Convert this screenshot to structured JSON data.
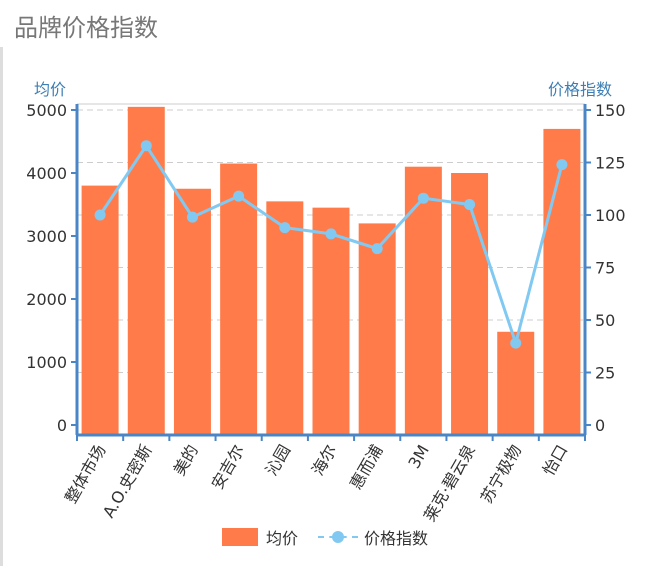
{
  "page": {
    "title": "品牌价格指数"
  },
  "chart_data": {
    "type": "bar+line",
    "categories": [
      "整体市场",
      "A.O.史密斯",
      "美的",
      "安吉尔",
      "沁园",
      "海尔",
      "惠而浦",
      "3M",
      "莱克·碧云泉",
      "苏宁极物",
      "怡口"
    ],
    "series": [
      {
        "name": "均价",
        "type": "bar",
        "axis": "left",
        "color": "#ff7c4a",
        "values": [
          3800,
          5050,
          3750,
          4150,
          3550,
          3450,
          3200,
          4100,
          4000,
          1480,
          4700
        ]
      },
      {
        "name": "价格指数",
        "type": "line",
        "axis": "right",
        "color": "#82c9f2",
        "values": [
          100,
          133,
          99,
          109,
          94,
          91,
          84,
          108,
          105,
          39,
          124
        ]
      }
    ],
    "left_axis": {
      "title": "均价",
      "ylim": [
        0,
        5000
      ],
      "ticks": [
        0,
        1000,
        2000,
        3000,
        4000,
        5000
      ]
    },
    "right_axis": {
      "title": "价格指数",
      "ylim": [
        0,
        150
      ],
      "ticks": [
        0,
        25,
        50,
        75,
        100,
        125,
        150
      ]
    },
    "grid": "dashed horizontal",
    "legend": {
      "position": "bottom",
      "items": [
        "均价",
        "价格指数"
      ]
    }
  }
}
